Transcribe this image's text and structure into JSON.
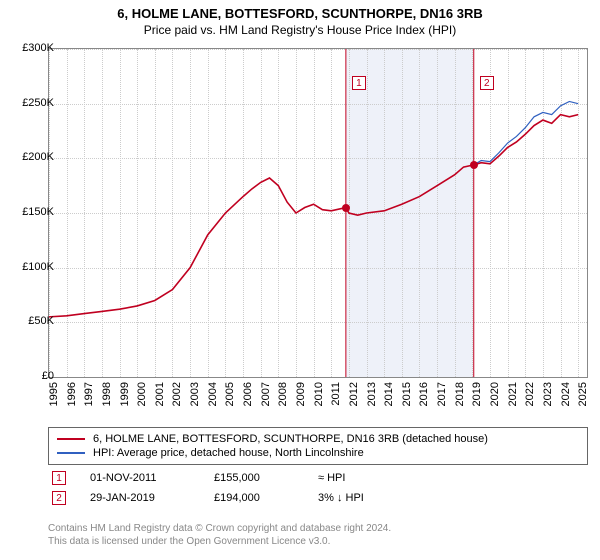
{
  "title": "6, HOLME LANE, BOTTESFORD, SCUNTHORPE, DN16 3RB",
  "subtitle": "Price paid vs. HM Land Registry's House Price Index (HPI)",
  "chart": {
    "type": "line",
    "background_color": "#ffffff",
    "grid_color": "#cccccc",
    "border_color": "#888888",
    "ylim": [
      0,
      300000
    ],
    "ytick_step": 50000,
    "yticks": [
      "£0",
      "£50K",
      "£100K",
      "£150K",
      "£200K",
      "£250K",
      "£300K"
    ],
    "xlim": [
      1995,
      2025.5
    ],
    "xticks": [
      1995,
      1996,
      1997,
      1998,
      1999,
      2000,
      2001,
      2002,
      2003,
      2004,
      2005,
      2006,
      2007,
      2008,
      2009,
      2010,
      2011,
      2012,
      2013,
      2014,
      2015,
      2016,
      2017,
      2018,
      2019,
      2020,
      2021,
      2022,
      2023,
      2024,
      2025
    ],
    "label_fontsize": 11,
    "series": [
      {
        "name": "property",
        "color": "#c00020",
        "width": 1.6,
        "points": [
          [
            1995,
            55000
          ],
          [
            1996,
            56000
          ],
          [
            1997,
            58000
          ],
          [
            1998,
            60000
          ],
          [
            1999,
            62000
          ],
          [
            2000,
            65000
          ],
          [
            2001,
            70000
          ],
          [
            2002,
            80000
          ],
          [
            2003,
            100000
          ],
          [
            2004,
            130000
          ],
          [
            2005,
            150000
          ],
          [
            2006,
            165000
          ],
          [
            2006.5,
            172000
          ],
          [
            2007,
            178000
          ],
          [
            2007.5,
            182000
          ],
          [
            2008,
            175000
          ],
          [
            2008.5,
            160000
          ],
          [
            2009,
            150000
          ],
          [
            2009.5,
            155000
          ],
          [
            2010,
            158000
          ],
          [
            2010.5,
            153000
          ],
          [
            2011,
            152000
          ],
          [
            2011.83,
            155000
          ],
          [
            2012,
            150000
          ],
          [
            2012.5,
            148000
          ],
          [
            2013,
            150000
          ],
          [
            2014,
            152000
          ],
          [
            2015,
            158000
          ],
          [
            2016,
            165000
          ],
          [
            2017,
            175000
          ],
          [
            2018,
            185000
          ],
          [
            2018.5,
            192000
          ],
          [
            2019.08,
            194000
          ],
          [
            2019.5,
            196000
          ],
          [
            2020,
            195000
          ],
          [
            2020.5,
            202000
          ],
          [
            2021,
            210000
          ],
          [
            2021.5,
            215000
          ],
          [
            2022,
            222000
          ],
          [
            2022.5,
            230000
          ],
          [
            2023,
            235000
          ],
          [
            2023.5,
            232000
          ],
          [
            2024,
            240000
          ],
          [
            2024.5,
            238000
          ],
          [
            2025,
            240000
          ]
        ]
      },
      {
        "name": "hpi",
        "color": "#3060c0",
        "width": 1.2,
        "points": [
          [
            2019.08,
            194000
          ],
          [
            2019.5,
            198000
          ],
          [
            2020,
            197000
          ],
          [
            2020.5,
            205000
          ],
          [
            2021,
            214000
          ],
          [
            2021.5,
            220000
          ],
          [
            2022,
            228000
          ],
          [
            2022.5,
            238000
          ],
          [
            2023,
            242000
          ],
          [
            2023.5,
            240000
          ],
          [
            2024,
            248000
          ],
          [
            2024.5,
            252000
          ],
          [
            2025,
            250000
          ]
        ]
      }
    ],
    "shaded_band": {
      "from": 2011.83,
      "to": 2019.08,
      "color": "rgba(160,180,220,0.18)"
    },
    "markers": [
      {
        "num": "1",
        "x": 2011.83,
        "box_y": 275000,
        "color": "#c00020"
      },
      {
        "num": "2",
        "x": 2019.08,
        "box_y": 275000,
        "color": "#c00020"
      }
    ],
    "sale_points": [
      {
        "x": 2011.83,
        "y": 155000,
        "color": "#c00020"
      },
      {
        "x": 2019.08,
        "y": 194000,
        "color": "#c00020"
      }
    ]
  },
  "legend": {
    "items": [
      {
        "color": "#c00020",
        "label": "6, HOLME LANE, BOTTESFORD, SCUNTHORPE, DN16 3RB (detached house)"
      },
      {
        "color": "#3060c0",
        "label": "HPI: Average price, detached house, North Lincolnshire"
      }
    ]
  },
  "sales": [
    {
      "num": "1",
      "color": "#c00020",
      "date": "01-NOV-2011",
      "price": "£155,000",
      "delta": "≈ HPI"
    },
    {
      "num": "2",
      "color": "#c00020",
      "date": "29-JAN-2019",
      "price": "£194,000",
      "delta": "3% ↓ HPI"
    }
  ],
  "footer_line1": "Contains HM Land Registry data © Crown copyright and database right 2024.",
  "footer_line2": "This data is licensed under the Open Government Licence v3.0."
}
